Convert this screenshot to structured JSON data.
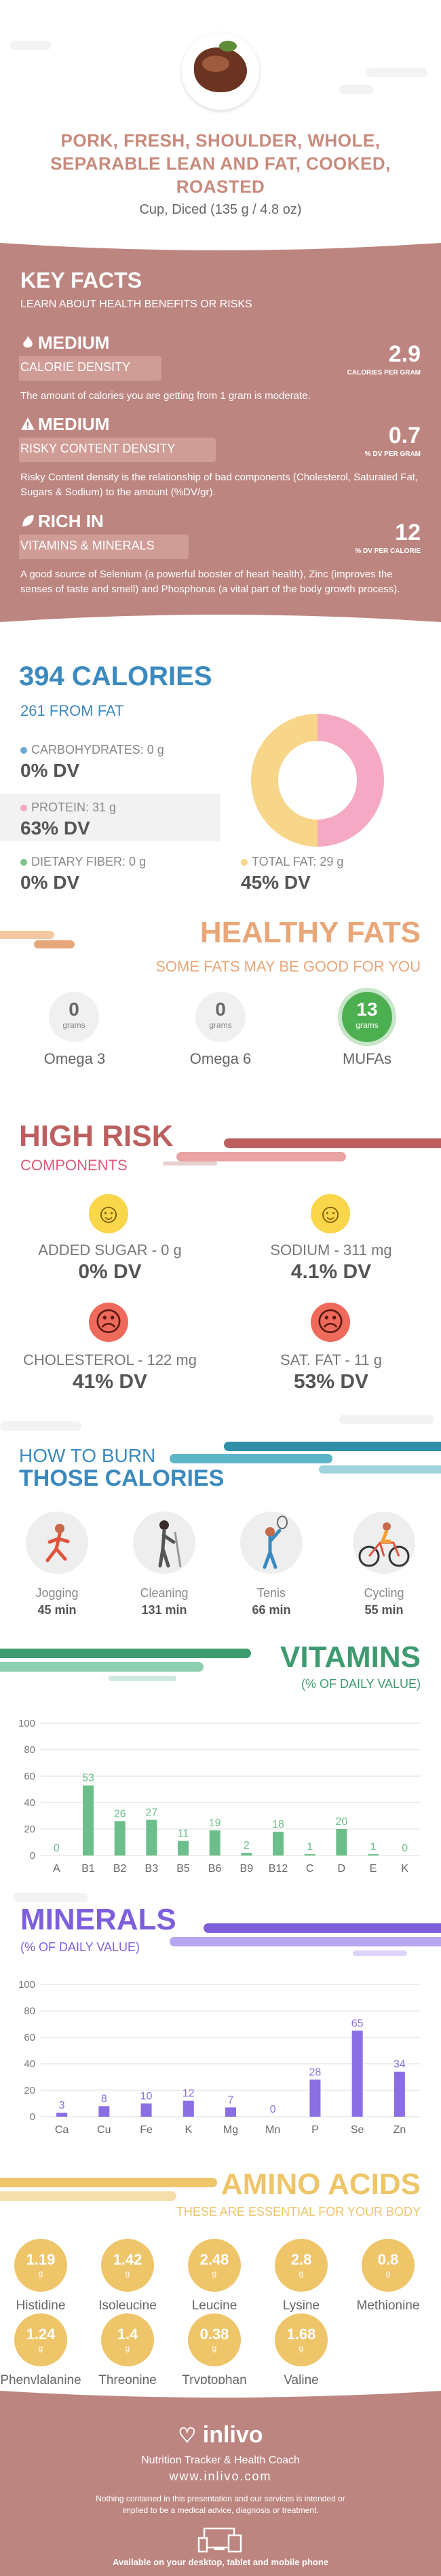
{
  "header": {
    "title": "PORK, FRESH, SHOULDER, WHOLE, SEPARABLE LEAN AND FAT, COOKED, ROASTED",
    "serving": "Cup, Diced (135 g / 4.8 oz)"
  },
  "key_facts": {
    "title": "KEY FACTS",
    "subtitle": "LEARN ABOUT HEALTH BENEFITS OR RISKS",
    "items": [
      {
        "level": "MEDIUM",
        "label": "CALORIE DENSITY",
        "value": "2.9",
        "unit": "CALORIES PER GRAM",
        "desc": "The amount of calories you are getting from 1 gram is moderate.",
        "icon": "flame-icon"
      },
      {
        "level": "MEDIUM",
        "label": "RISKY CONTENT DENSITY",
        "value": "0.7",
        "unit": "% DV PER GRAM",
        "desc": "Risky Content density is the relationship of bad components (Cholesterol, Saturated Fat, Sugars & Sodium) to the amount (%DV/gr).",
        "icon": "warning-icon"
      },
      {
        "level": "RICH  IN",
        "label": "VITAMINS & MINERALS",
        "value": "12",
        "unit": "% DV PER CALORIE",
        "desc": "A good source of Selenium (a powerful booster of heart health), Zinc (improves the senses of taste and smell) and Phosphorus (a vital part of the body growth process).",
        "icon": "leaf-icon"
      }
    ]
  },
  "calories": {
    "title": "394 CALORIES",
    "from_fat": "261 FROM FAT",
    "macros": {
      "carbs": {
        "label": "CARBOHYDRATES: 0 g",
        "dv": "0% DV"
      },
      "protein": {
        "label": "PROTEIN: 31 g",
        "dv": "63% DV"
      },
      "fiber": {
        "label": "DIETARY FIBER: 0 g",
        "dv": "0% DV"
      },
      "fat": {
        "label": "TOTAL FAT: 29 g",
        "dv": "45% DV"
      }
    },
    "donut": {
      "protein_fraction": 0.5,
      "fat_fraction": 0.5,
      "protein_color": "#f6a9c5",
      "fat_color": "#f7d68a"
    }
  },
  "healthy_fats": {
    "title": "HEALTHY FATS",
    "subtitle": "SOME FATS MAY BE GOOD FOR YOU",
    "unit": "grams",
    "items": [
      {
        "name": "Omega 3",
        "value": "0"
      },
      {
        "name": "Omega 6",
        "value": "0"
      },
      {
        "name": "MUFAs",
        "value": "13"
      }
    ]
  },
  "high_risk": {
    "title": "HIGH RISK",
    "subtitle": "COMPONENTS",
    "items": [
      {
        "label": "ADDED SUGAR - 0 g",
        "dv": "0% DV",
        "face": "happy"
      },
      {
        "label": "SODIUM - 311 mg",
        "dv": "4.1% DV",
        "face": "happy"
      },
      {
        "label": "CHOLESTEROL - 122 mg",
        "dv": "41% DV",
        "face": "sad"
      },
      {
        "label": "SAT. FAT - 11 g",
        "dv": "53% DV",
        "face": "sad"
      }
    ]
  },
  "burn": {
    "title1": "HOW TO BURN",
    "title2": "THOSE CALORIES",
    "items": [
      {
        "name": "Jogging",
        "time": "45 min"
      },
      {
        "name": "Cleaning",
        "time": "131 min"
      },
      {
        "name": "Tenis",
        "time": "66 min"
      },
      {
        "name": "Cycling",
        "time": "55 min"
      }
    ]
  },
  "vitamins": {
    "title": "VITAMINS",
    "subtitle": "(% OF DAILY VALUE)",
    "color": "#6cbf8a"
  },
  "minerals": {
    "title": "MINERALS",
    "subtitle": "(% OF DAILY VALUE)",
    "color": "#8a6ee3"
  },
  "chart_data": [
    {
      "type": "bar",
      "title": "VITAMINS",
      "categories": [
        "A",
        "B1",
        "B2",
        "B3",
        "B5",
        "B6",
        "B9",
        "B12",
        "C",
        "D",
        "E",
        "K"
      ],
      "values": [
        0,
        53,
        26,
        27,
        11,
        19,
        2,
        18,
        1,
        20,
        1,
        0
      ],
      "yticks": [
        0,
        20,
        40,
        60,
        80,
        100
      ],
      "ylim": [
        0,
        100
      ]
    },
    {
      "type": "bar",
      "title": "MINERALS",
      "categories": [
        "Ca",
        "Cu",
        "Fe",
        "K",
        "Mg",
        "Mn",
        "P",
        "Se",
        "Zn"
      ],
      "values": [
        3,
        8,
        10,
        12,
        7,
        0,
        28,
        65,
        34
      ],
      "yticks": [
        0,
        20,
        40,
        60,
        80,
        100
      ],
      "ylim": [
        0,
        100
      ]
    }
  ],
  "amino": {
    "title": "AMINO ACIDS",
    "subtitle": "THESE ARE ESSENTIAL FOR YOUR BODY",
    "unit": "g",
    "items": [
      {
        "name": "Histidine",
        "value": "1.19"
      },
      {
        "name": "Isoleucine",
        "value": "1.42"
      },
      {
        "name": "Leucine",
        "value": "2.48"
      },
      {
        "name": "Lysine",
        "value": "2.8"
      },
      {
        "name": "Methionine",
        "value": "0.8"
      },
      {
        "name": "Phenylalanine",
        "value": "1.24"
      },
      {
        "name": "Threonine",
        "value": "1.4"
      },
      {
        "name": "Tryptophan",
        "value": "0.38"
      },
      {
        "name": "Valine",
        "value": "1.68"
      }
    ]
  },
  "footer": {
    "brand": "inlivo",
    "tagline": "Nutrition Tracker & Health Coach",
    "url": "www.inlivo.com",
    "disclaimer": "Nothing contained in this presentation and our services is intended or implied to be a medical advice, diagnosis or treatment.",
    "available": "Available on your desktop, tablet and mobile phone"
  }
}
